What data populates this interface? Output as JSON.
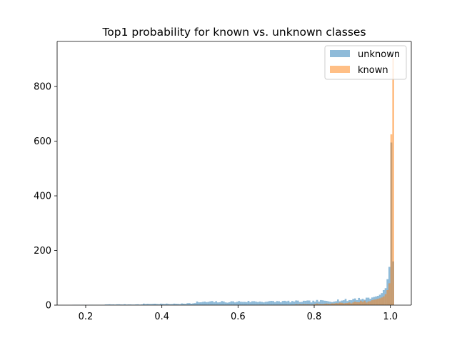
{
  "chart_data": {
    "type": "bar",
    "subtype": "overlaid-histogram",
    "title": "Top1 probability for known vs. unknown classes",
    "xlabel": "",
    "ylabel": "",
    "xlim": [
      0.125,
      1.055
    ],
    "ylim": [
      0,
      965
    ],
    "xticks": [
      0.2,
      0.4,
      0.6,
      0.8,
      1.0
    ],
    "xtick_labels": [
      "0.2",
      "0.4",
      "0.6",
      "0.8",
      "1.0"
    ],
    "yticks": [
      0,
      200,
      400,
      600,
      800
    ],
    "ytick_labels": [
      "0",
      "200",
      "400",
      "600",
      "800"
    ],
    "bins": {
      "start": 0.165,
      "end": 1.015,
      "count": 170
    },
    "grid": false,
    "legend_position": "top-right",
    "series": [
      {
        "name": "unknown",
        "color": "#1f77b4",
        "opacity": 0.5,
        "segments": [
          {
            "from": 0.165,
            "to": 0.25,
            "value": 0.8
          },
          {
            "from": 0.25,
            "to": 0.35,
            "value": 2.5
          },
          {
            "from": 0.35,
            "to": 0.45,
            "value": 4.5
          },
          {
            "from": 0.45,
            "to": 0.49,
            "value": 6.5
          },
          {
            "from": 0.49,
            "to": 0.52,
            "value": 11
          },
          {
            "from": 0.52,
            "to": 0.6,
            "value": 12
          },
          {
            "from": 0.6,
            "to": 0.7,
            "value": 13
          },
          {
            "from": 0.7,
            "to": 0.8,
            "value": 13.5
          },
          {
            "from": 0.8,
            "to": 0.85,
            "value": 15
          },
          {
            "from": 0.85,
            "to": 0.9,
            "value": 18
          },
          {
            "from": 0.9,
            "to": 0.95,
            "value": 24
          }
        ],
        "peak_bins": [
          {
            "x": 0.95,
            "value": 28
          },
          {
            "x": 0.955,
            "value": 30
          },
          {
            "x": 0.96,
            "value": 32
          },
          {
            "x": 0.965,
            "value": 34
          },
          {
            "x": 0.97,
            "value": 38
          },
          {
            "x": 0.975,
            "value": 44
          },
          {
            "x": 0.98,
            "value": 55
          },
          {
            "x": 0.985,
            "value": 62
          },
          {
            "x": 0.99,
            "value": 95
          },
          {
            "x": 0.995,
            "value": 140
          },
          {
            "x": 1.0,
            "value": 595
          },
          {
            "x": 1.005,
            "value": 160
          }
        ]
      },
      {
        "name": "known",
        "color": "#ff7f0e",
        "opacity": 0.5,
        "segments": [
          {
            "from": 0.38,
            "to": 0.5,
            "value": 0.3
          },
          {
            "from": 0.5,
            "to": 0.65,
            "value": 0.8
          },
          {
            "from": 0.65,
            "to": 0.75,
            "value": 1.2
          },
          {
            "from": 0.75,
            "to": 0.8,
            "value": 2.5
          },
          {
            "from": 0.8,
            "to": 0.85,
            "value": 5
          },
          {
            "from": 0.85,
            "to": 0.9,
            "value": 8
          },
          {
            "from": 0.9,
            "to": 0.95,
            "value": 13
          }
        ],
        "peak_bins": [
          {
            "x": 0.95,
            "value": 18
          },
          {
            "x": 0.955,
            "value": 20
          },
          {
            "x": 0.96,
            "value": 21
          },
          {
            "x": 0.965,
            "value": 23
          },
          {
            "x": 0.97,
            "value": 25
          },
          {
            "x": 0.975,
            "value": 28
          },
          {
            "x": 0.98,
            "value": 32
          },
          {
            "x": 0.985,
            "value": 40
          },
          {
            "x": 0.99,
            "value": 55
          },
          {
            "x": 0.995,
            "value": 80
          },
          {
            "x": 1.0,
            "value": 625
          },
          {
            "x": 1.005,
            "value": 905
          }
        ]
      }
    ]
  }
}
